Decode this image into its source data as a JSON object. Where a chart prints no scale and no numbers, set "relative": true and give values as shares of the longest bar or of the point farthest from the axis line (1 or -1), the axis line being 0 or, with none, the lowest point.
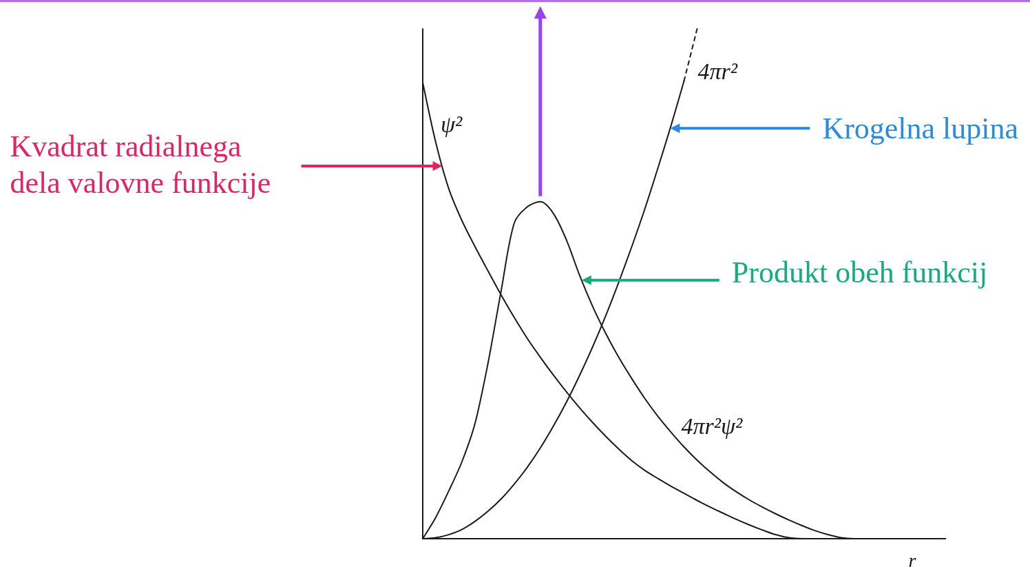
{
  "chart_data": {
    "type": "line",
    "relative": true,
    "xlabel": "r",
    "marker": "none",
    "line_style": "solid",
    "categories": [
      null,
      null,
      null,
      null,
      null,
      null,
      null,
      null,
      null,
      null,
      null,
      null,
      null,
      null,
      null,
      null,
      null,
      null,
      null,
      null,
      null,
      null,
      null,
      null,
      null,
      null,
      null,
      null,
      null,
      null,
      null,
      null,
      null,
      null,
      null,
      null,
      null,
      null,
      null,
      null,
      null
    ],
    "series": [
      {
        "name": "ψ²",
        "color": "#1a1a1a",
        "values": [
          0.895,
          0.777,
          0.686,
          0.624,
          0.573,
          0.525,
          0.478,
          0.434,
          0.393,
          0.356,
          0.321,
          0.288,
          0.257,
          0.228,
          0.201,
          0.176,
          0.153,
          0.134,
          0.118,
          0.103,
          0.089,
          0.075,
          0.062,
          0.05,
          0.038,
          0.027,
          0.017,
          0.008,
          0.002,
          0,
          0,
          0,
          0,
          0,
          0,
          0,
          0,
          0,
          0,
          0,
          0
        ]
      },
      {
        "name": "4πr²",
        "color": "#1a1a1a",
        "values": [
          0,
          0.002,
          0.008,
          0.018,
          0.034,
          0.054,
          0.078,
          0.107,
          0.14,
          0.178,
          0.221,
          0.268,
          0.32,
          0.376,
          0.437,
          0.503,
          0.573,
          0.647,
          0.727,
          0.81,
          0.898,
          null,
          null,
          null,
          null,
          null,
          null,
          null,
          null,
          null,
          null,
          null,
          null,
          null,
          null,
          null,
          null,
          null,
          null,
          null,
          null
        ]
      },
      {
        "name": "4πr²ψ²",
        "color": "#1a1a1a",
        "values": [
          0,
          0.042,
          0.094,
          0.151,
          0.226,
          0.345,
          0.486,
          0.619,
          0.651,
          0.661,
          0.638,
          0.586,
          0.517,
          0.456,
          0.403,
          0.356,
          0.314,
          0.275,
          0.24,
          0.209,
          0.18,
          0.154,
          0.131,
          0.11,
          0.092,
          0.076,
          0.062,
          0.049,
          0.037,
          0.026,
          0.016,
          0.008,
          0.002,
          0,
          0,
          0,
          0,
          0,
          0,
          0,
          0
        ]
      },
      {
        "color": "#1a1a1a",
        "line_style": "dashed",
        "values": [
          null,
          null,
          null,
          null,
          null,
          null,
          null,
          null,
          null,
          null,
          null,
          null,
          null,
          null,
          null,
          null,
          null,
          null,
          null,
          null,
          0.898,
          1,
          null,
          null,
          null,
          null,
          null,
          null,
          null,
          null,
          null,
          null,
          null,
          null,
          null,
          null,
          null,
          null,
          null,
          null,
          null
        ]
      }
    ],
    "annotations": [
      "Kvadrat radialnega dela valovne funkcije",
      "Krogelna lupina",
      "Produkt obeh funkcij"
    ]
  }
}
